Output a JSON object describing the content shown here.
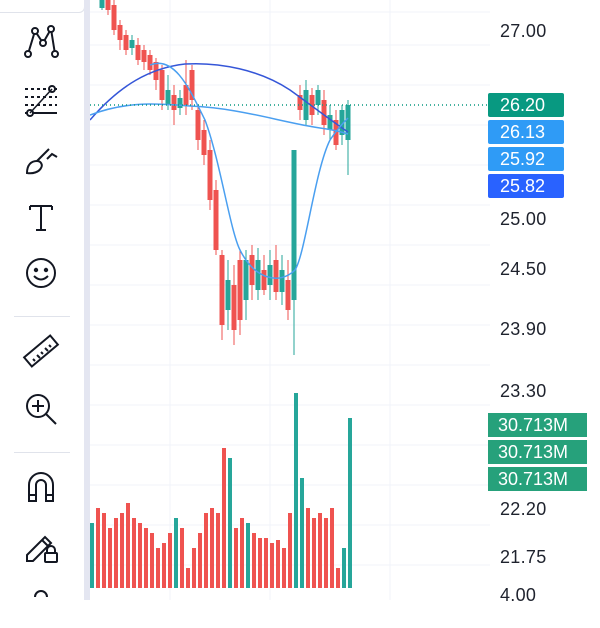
{
  "toolbar": {
    "tools": [
      {
        "name": "pattern-tool",
        "icon": "pattern-icon"
      },
      {
        "name": "fib-tool",
        "icon": "fib-retracement-icon"
      },
      {
        "name": "brush-tool",
        "icon": "brush-icon"
      },
      {
        "name": "text-tool",
        "icon": "text-icon"
      },
      {
        "name": "emoji-tool",
        "icon": "smiley-icon"
      },
      {
        "name": "ruler-tool",
        "icon": "ruler-icon"
      },
      {
        "name": "zoom-tool",
        "icon": "zoom-in-icon"
      },
      {
        "name": "magnet-tool",
        "icon": "magnet-icon"
      },
      {
        "name": "lock-draw-tool",
        "icon": "pencil-lock-icon"
      },
      {
        "name": "more-tool",
        "icon": "link-icon"
      }
    ]
  },
  "price_axis": {
    "labels": [
      "27.00",
      "25.00",
      "24.50",
      "23.90",
      "23.30",
      "22.20",
      "21.75",
      "4.00"
    ]
  },
  "price_tags": [
    {
      "value": "26.20",
      "color": "#089981"
    },
    {
      "value": "26.13",
      "color": "#2f9bf6"
    },
    {
      "value": "25.92",
      "color": "#2f9bf6"
    },
    {
      "value": "25.82",
      "color": "#2962ff"
    }
  ],
  "volume_tags": [
    "30.713M",
    "30.713M",
    "30.713M"
  ],
  "colors": {
    "up": "#26a69a",
    "down": "#ef5350",
    "ma_fast": "#4a9ff0",
    "ma_slow": "#3556d8",
    "grid": "#f0f3fa",
    "last_price_line": "#089981"
  }
}
